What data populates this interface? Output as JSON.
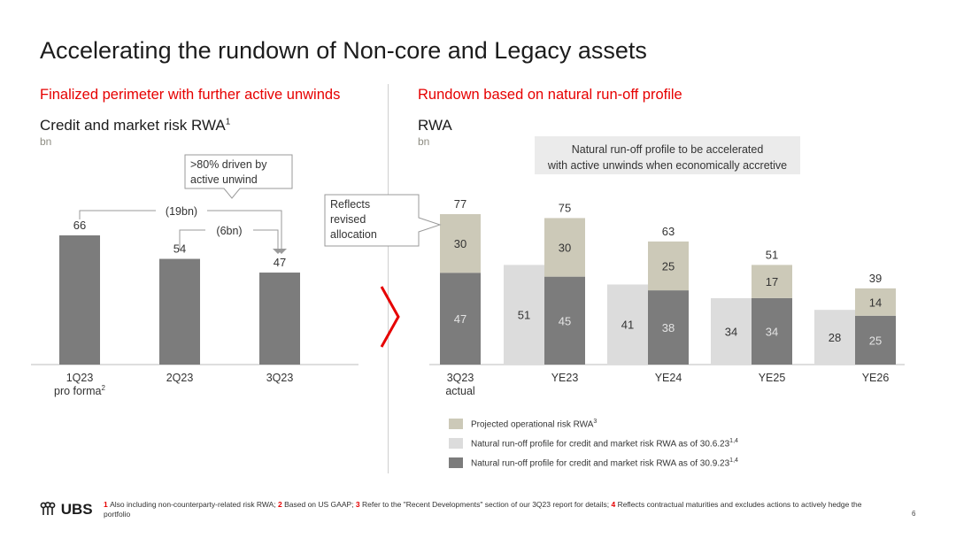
{
  "title": "Accelerating the rundown of Non-core and Legacy assets",
  "colors": {
    "accent": "#e60000",
    "dark_bar": "#7c7c7c",
    "light_bar": "#dcdcdc",
    "beige_bar": "#ccc9b8"
  },
  "left": {
    "subtitle": "Finalized perimeter with further active unwinds",
    "chart_title": "Credit and market risk RWA",
    "chart_title_sup": "1",
    "unit": "bn",
    "callout": ">80% driven by active unwind",
    "annotation_19bn": "(19bn)",
    "annotation_6bn": "(6bn)"
  },
  "right": {
    "subtitle": "Rundown based on natural run-off profile",
    "chart_title": "RWA",
    "unit": "bn",
    "note": "Natural run-off profile to be accelerated with active unwinds when economically accretive",
    "callout": "Reflects revised allocation methodology"
  },
  "legend": [
    {
      "label": "Projected operational risk RWA",
      "sup": "3",
      "color": "#ccc9b8"
    },
    {
      "label": "Natural run-off profile for credit and market risk RWA as of 30.6.23",
      "sup": "1,4",
      "color": "#dcdcdc"
    },
    {
      "label": "Natural run-off profile for credit and market risk RWA as of 30.9.23",
      "sup": "1,4",
      "color": "#7c7c7c"
    }
  ],
  "footer": {
    "logo": "UBS",
    "notes": [
      {
        "num": "1",
        "text": "Also including non-counterparty-related risk RWA;"
      },
      {
        "num": "2",
        "text": "Based on US GAAP;"
      },
      {
        "num": "3",
        "text": "Refer to the \"Recent Developments\" section of our 3Q23 report for details;"
      },
      {
        "num": "4",
        "text": "Reflects contractual maturities and excludes actions to actively hedge the portfolio"
      }
    ],
    "page": "6"
  },
  "chart_data": [
    {
      "type": "bar",
      "title": "Credit and market risk RWA",
      "ylabel": "bn",
      "categories": [
        "1Q23 pro forma",
        "2Q23",
        "3Q23"
      ],
      "category_sups": [
        "2",
        "",
        ""
      ],
      "values": [
        66,
        54,
        47
      ],
      "ylim": [
        0,
        70
      ],
      "annotations": [
        "(19bn)",
        "(6bn)",
        ">80% driven by active unwind"
      ]
    },
    {
      "type": "bar",
      "title": "RWA",
      "ylabel": "bn",
      "categories": [
        "3Q23 actual",
        "YE23",
        "YE24",
        "YE25",
        "YE26"
      ],
      "ylim": [
        0,
        80
      ],
      "series": [
        {
          "name": "Natural run-off profile for credit and market risk RWA as of 30.6.23",
          "values": [
            null,
            51,
            41,
            34,
            28
          ]
        },
        {
          "name": "Natural run-off profile for credit and market risk RWA as of 30.9.23",
          "values": [
            47,
            45,
            38,
            34,
            25
          ]
        },
        {
          "name": "Projected operational risk RWA",
          "values": [
            30,
            30,
            25,
            17,
            14
          ]
        }
      ],
      "totals": [
        77,
        75,
        63,
        51,
        39
      ]
    }
  ]
}
